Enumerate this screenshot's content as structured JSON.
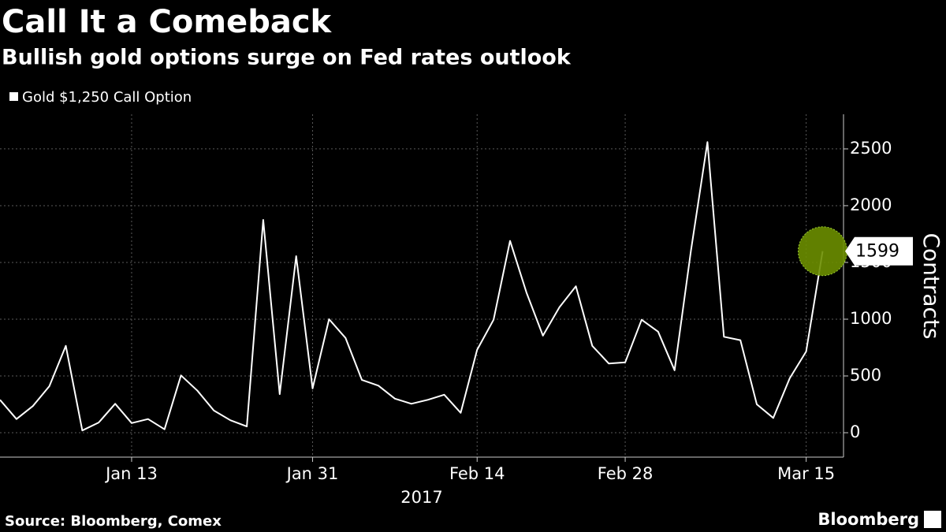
{
  "chart_data": {
    "type": "line",
    "title": "Call It a Comeback",
    "subtitle": "Bullish gold options surge on Fed rates outlook",
    "x_label": "2017",
    "y_label": "Contracts",
    "source": "Source: Bloomberg, Comex",
    "brand": "Bloomberg",
    "categories": [
      null,
      null,
      null,
      null,
      null,
      null,
      null,
      null,
      "Jan 13",
      null,
      null,
      null,
      null,
      null,
      null,
      null,
      null,
      null,
      null,
      "Jan 31",
      null,
      null,
      null,
      null,
      null,
      null,
      null,
      null,
      null,
      "Feb 14",
      null,
      null,
      null,
      null,
      null,
      null,
      null,
      null,
      "Feb 28",
      null,
      null,
      null,
      null,
      null,
      null,
      null,
      null,
      null,
      null,
      "Mar 15",
      null
    ],
    "series": [
      {
        "name": "Gold $1,250 Call Option",
        "color": "#ffffff",
        "values": [
          290,
          120,
          235,
          410,
          765,
          20,
          90,
          255,
          85,
          120,
          30,
          505,
          370,
          195,
          110,
          55,
          1875,
          340,
          1555,
          390,
          1000,
          835,
          465,
          415,
          300,
          255,
          290,
          335,
          175,
          730,
          995,
          1690,
          1235,
          855,
          1105,
          1290,
          765,
          610,
          620,
          995,
          890,
          550,
          1605,
          2560,
          845,
          815,
          250,
          130,
          480,
          715,
          1599
        ]
      }
    ],
    "ylim": [
      -215,
      2805
    ],
    "yticks": [
      0,
      500,
      1000,
      1500,
      2000,
      2500
    ],
    "grid": true,
    "highlight_color": "#6b8e00"
  }
}
